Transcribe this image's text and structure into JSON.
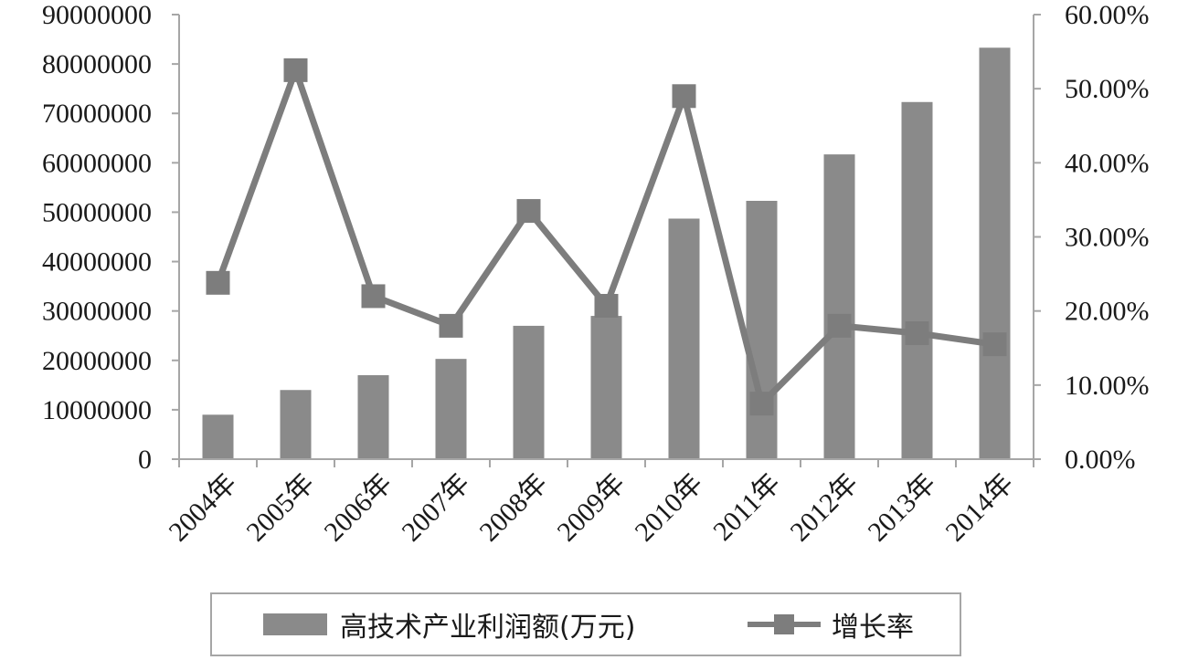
{
  "colors": {
    "bar": "#8a8a8a",
    "line": "#7d7d7d",
    "marker": "#7d7d7d",
    "axis": "#a6a6a6",
    "text": "#1a1a1a"
  },
  "chart_data": {
    "type": "bar",
    "categories": [
      "2004年",
      "2005年",
      "2006年",
      "2007年",
      "2008年",
      "2009年",
      "2010年",
      "2011年",
      "2012年",
      "2013年",
      "2014年"
    ],
    "series": [
      {
        "name": "高技术产业利润额(万元)",
        "type": "bar",
        "axis": "left",
        "values": [
          9000000,
          14000000,
          17000000,
          20300000,
          27000000,
          29000000,
          48700000,
          52300000,
          61700000,
          72300000,
          83300000
        ]
      },
      {
        "name": "增长率",
        "type": "line",
        "axis": "right",
        "values": [
          0.238,
          0.525,
          0.22,
          0.18,
          0.335,
          0.207,
          0.49,
          0.075,
          0.18,
          0.17,
          0.155
        ]
      }
    ],
    "y_left": {
      "min": 0,
      "max": 90000000,
      "ticks": [
        0,
        10000000,
        20000000,
        30000000,
        40000000,
        50000000,
        60000000,
        70000000,
        80000000,
        90000000
      ],
      "tick_labels": [
        "0",
        "10000000",
        "20000000",
        "30000000",
        "40000000",
        "50000000",
        "60000000",
        "70000000",
        "80000000",
        "90000000"
      ]
    },
    "y_right": {
      "min": 0,
      "max": 0.6,
      "ticks": [
        0,
        0.1,
        0.2,
        0.3,
        0.4,
        0.5,
        0.6
      ],
      "tick_labels": [
        "0.00%",
        "10.00%",
        "20.00%",
        "30.00%",
        "40.00%",
        "50.00%",
        "60.00%"
      ]
    },
    "grid": false,
    "legend_position": "bottom",
    "legend": [
      "高技术产业利润额(万元)",
      "增长率"
    ]
  }
}
